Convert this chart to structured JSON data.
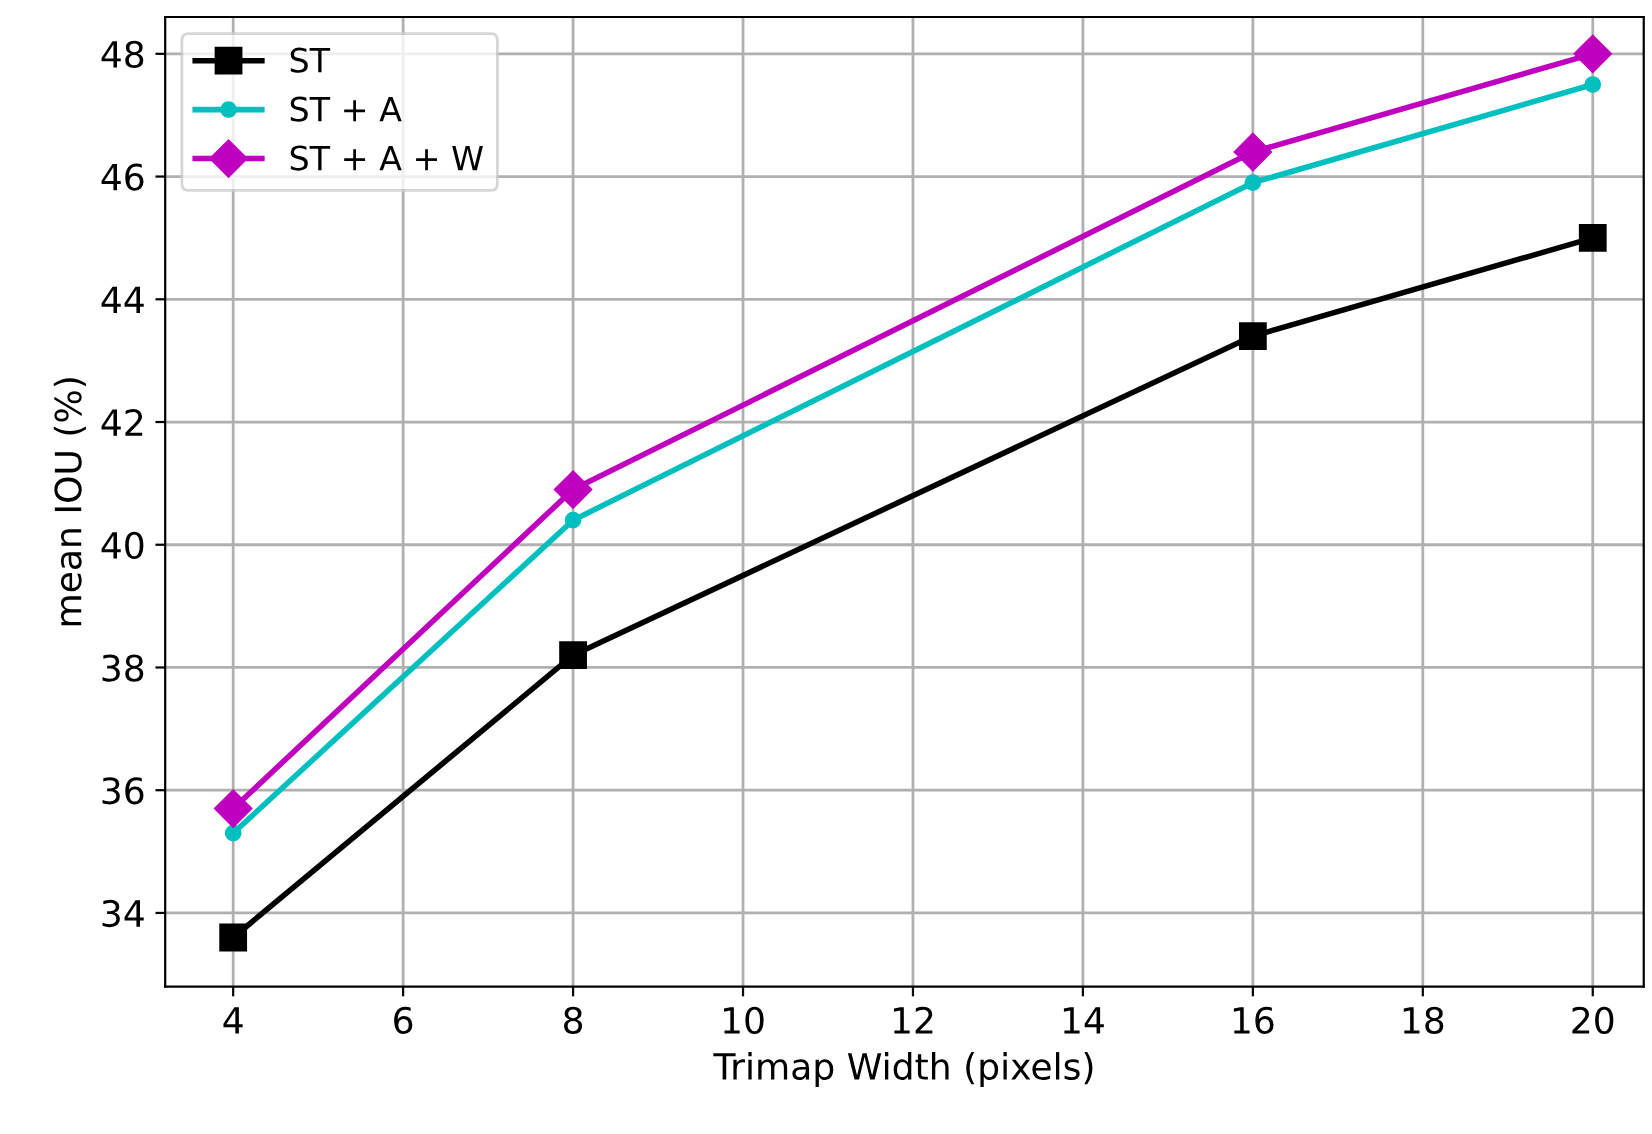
{
  "chart_data": {
    "type": "line",
    "xlabel": "Trimap Width (pixels)",
    "ylabel": "mean IOU (%)",
    "x": [
      4,
      8,
      16,
      20
    ],
    "series": [
      {
        "name": "ST",
        "color": "#000000",
        "marker": "square",
        "values": [
          33.6,
          38.2,
          43.4,
          45.0
        ]
      },
      {
        "name": "ST + A",
        "color": "#00bfbf",
        "marker": "circle",
        "values": [
          35.3,
          40.4,
          45.9,
          47.5
        ]
      },
      {
        "name": "ST + A + W",
        "color": "#bf00bf",
        "marker": "diamond",
        "values": [
          35.7,
          40.9,
          46.4,
          48.0
        ]
      }
    ],
    "xlim": [
      3.2,
      20.6
    ],
    "xticks": [
      4,
      6,
      8,
      10,
      12,
      14,
      16,
      18,
      20
    ],
    "ylim": [
      32.8,
      48.6
    ],
    "yticks": [
      34,
      36,
      38,
      40,
      42,
      44,
      46,
      48
    ],
    "grid": true,
    "legend": "top left",
    "line_style": "solid"
  }
}
